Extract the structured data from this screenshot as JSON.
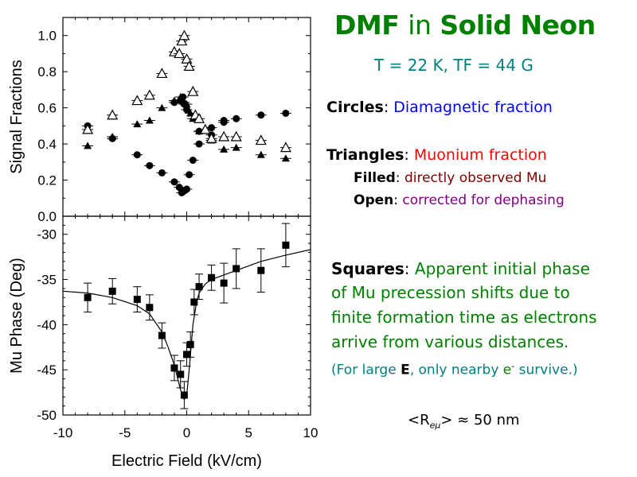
{
  "title": {
    "part1": "DMF",
    "part2": "in",
    "part3": "Solid Neon"
  },
  "subtitle": "T = 22 K, TF = 44 G",
  "legend": {
    "circles_label": "Circles",
    "circles_text": "Diamagnetic fraction",
    "triangles_label": "Triangles",
    "triangles_text": "Muonium fraction",
    "filled_label": "Filled",
    "filled_text": "directly observed Mu",
    "open_label": "Open",
    "open_text": "corrected for dephasing"
  },
  "squares_note": {
    "label": "Squares",
    "line1": "Apparent initial phase",
    "line2": "of Mu precession shifts due to",
    "line3": "finite formation time as electrons",
    "line4": "arrive from various distances.",
    "note_pre": "(For large ",
    "note_E": "E",
    "note_mid": ", only nearby ",
    "note_e": "e",
    "note_sup": "-",
    "note_post": " survive.)"
  },
  "formula": {
    "pre": "<R",
    "sub": "eμ",
    "post": "> ≈ 50 nm"
  },
  "colors": {
    "title_green": "#008000",
    "teal": "#008080",
    "blue": "#0000ff",
    "red": "#ff0000",
    "darkred": "#800000",
    "purple": "#800080",
    "green": "#008000"
  },
  "chart_data": [
    {
      "type": "scatter",
      "xlabel": "Electric Field (kV/cm)",
      "ylabel": "Signal Fractions",
      "xlim": [
        -10,
        10
      ],
      "ylim": [
        0,
        1.1
      ],
      "xticks": [
        -10,
        -5,
        0,
        5,
        10
      ],
      "yticks": [
        0.0,
        0.2,
        0.4,
        0.6,
        0.8,
        1.0
      ],
      "ytick_labels": [
        "0.0",
        "0.2",
        "0.4",
        "0.6",
        "0.8",
        "1.0"
      ],
      "series": [
        {
          "name": "Circles",
          "marker": "filled-circle",
          "points": [
            [
              -8,
              0.5
            ],
            [
              -6,
              0.43
            ],
            [
              -4,
              0.34
            ],
            [
              -3,
              0.28
            ],
            [
              -2,
              0.24
            ],
            [
              -1,
              0.19
            ],
            [
              -0.6,
              0.16
            ],
            [
              -0.4,
              0.13
            ],
            [
              -0.2,
              0.14
            ],
            [
              0,
              0.15
            ],
            [
              0.2,
              0.23
            ],
            [
              0.5,
              0.31
            ],
            [
              1,
              0.4
            ],
            [
              2,
              0.45
            ],
            [
              3,
              0.53
            ],
            [
              4,
              0.54
            ],
            [
              6,
              0.56
            ],
            [
              8,
              0.57
            ],
            [
              1,
              0.47
            ],
            [
              2,
              0.49
            ],
            [
              3,
              0.52
            ],
            [
              0,
              0.59
            ],
            [
              -0.2,
              0.62
            ],
            [
              -0.5,
              0.64
            ],
            [
              -1,
              0.63
            ],
            [
              -0.3,
              0.66
            ]
          ]
        },
        {
          "name": "Filled triangles",
          "marker": "filled-triangle",
          "points": [
            [
              -8,
              0.39
            ],
            [
              -6,
              0.44
            ],
            [
              -4,
              0.51
            ],
            [
              -3,
              0.53
            ],
            [
              -2,
              0.6
            ],
            [
              -1,
              0.64
            ],
            [
              -0.5,
              0.66
            ],
            [
              -0.2,
              0.63
            ],
            [
              0,
              0.62
            ],
            [
              0.3,
              0.57
            ],
            [
              0.5,
              0.54
            ],
            [
              1,
              0.47
            ],
            [
              2,
              0.42
            ],
            [
              3,
              0.37
            ],
            [
              4,
              0.38
            ],
            [
              6,
              0.34
            ],
            [
              8,
              0.32
            ]
          ]
        },
        {
          "name": "Open triangles",
          "marker": "open-triangle",
          "points": [
            [
              -8,
              0.48
            ],
            [
              -6,
              0.56
            ],
            [
              -4,
              0.64
            ],
            [
              -3,
              0.67
            ],
            [
              -2,
              0.79
            ],
            [
              -1,
              0.91
            ],
            [
              -0.6,
              0.9
            ],
            [
              -0.4,
              0.97
            ],
            [
              -0.2,
              1.0
            ],
            [
              0,
              0.87
            ],
            [
              0.2,
              0.83
            ],
            [
              0.5,
              0.69
            ],
            [
              0.7,
              0.56
            ],
            [
              1,
              0.54
            ],
            [
              1.5,
              0.48
            ],
            [
              2,
              0.43
            ],
            [
              3,
              0.44
            ],
            [
              4,
              0.44
            ],
            [
              6,
              0.42
            ],
            [
              8,
              0.38
            ]
          ]
        }
      ]
    },
    {
      "type": "scatter",
      "xlabel": "Electric Field (kV/cm)",
      "ylabel": "Mu Phase (Deg)",
      "xlim": [
        -10,
        10
      ],
      "ylim": [
        -50,
        -28
      ],
      "xticks": [
        -10,
        -5,
        0,
        5,
        10
      ],
      "yticks": [
        -30,
        -35,
        -40,
        -45,
        -50
      ],
      "series": [
        {
          "name": "Squares",
          "marker": "filled-square",
          "points": [
            [
              -8,
              -37.0,
              1.6
            ],
            [
              -6,
              -36.3,
              1.4
            ],
            [
              -4,
              -37.2,
              1.4
            ],
            [
              -3,
              -38.1,
              1.4
            ],
            [
              -2,
              -41.2,
              1.4
            ],
            [
              -1,
              -44.8,
              1.4
            ],
            [
              -0.5,
              -45.5,
              1.5
            ],
            [
              -0.2,
              -47.8,
              1.5
            ],
            [
              0,
              -43.3,
              1.3
            ],
            [
              0.3,
              -42.2,
              1.4
            ],
            [
              0.6,
              -37.5,
              1.4
            ],
            [
              1,
              -35.8,
              1.4
            ],
            [
              2,
              -34.8,
              1.4
            ],
            [
              3,
              -35.4,
              2.2
            ],
            [
              4,
              -33.8,
              2.2
            ],
            [
              6,
              -34.0,
              2.4
            ],
            [
              8,
              -31.2,
              2.4
            ]
          ]
        }
      ],
      "fit_curve": [
        [
          -10,
          -36.3
        ],
        [
          -8,
          -36.5
        ],
        [
          -6,
          -37.0
        ],
        [
          -4,
          -37.9
        ],
        [
          -3,
          -38.8
        ],
        [
          -2,
          -40.8
        ],
        [
          -1.5,
          -42.5
        ],
        [
          -1,
          -44.5
        ],
        [
          -0.5,
          -47.2
        ],
        [
          -0.2,
          -48.3
        ],
        [
          0,
          -47.8
        ],
        [
          0.2,
          -45.0
        ],
        [
          0.5,
          -40.0
        ],
        [
          0.8,
          -37.5
        ],
        [
          1,
          -36.5
        ],
        [
          1.5,
          -35.5
        ],
        [
          2,
          -35.0
        ],
        [
          4,
          -34.0
        ],
        [
          6,
          -33.0
        ],
        [
          8,
          -32.3
        ],
        [
          10,
          -31.7
        ]
      ]
    }
  ]
}
